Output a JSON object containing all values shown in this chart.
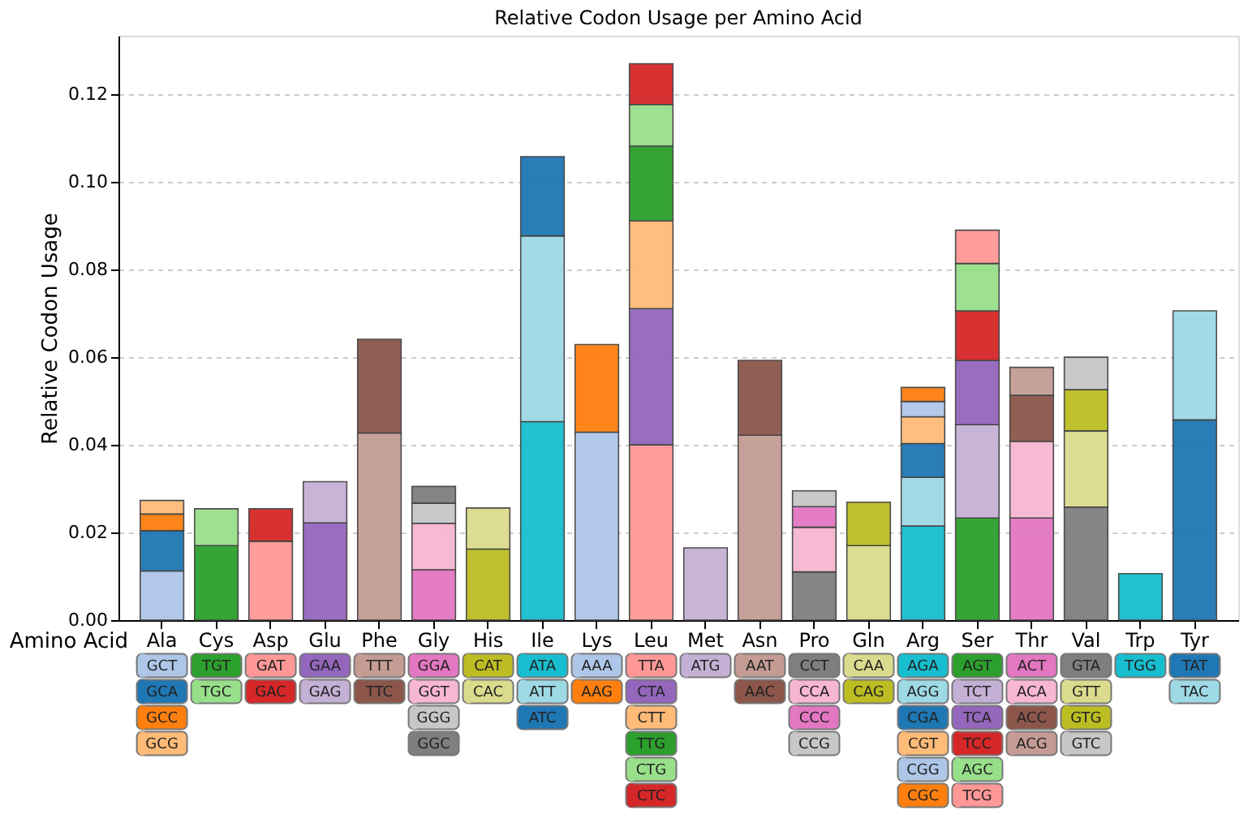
{
  "chart_data": {
    "type": "bar",
    "title": "Relative Codon Usage per Amino Acid",
    "xlabel": "Amino Acid",
    "ylabel": "Relative Codon Usage",
    "stacked": true,
    "grid": "y",
    "legend": "bottom",
    "ylim": [
      0,
      0.1334
    ],
    "yticks": [
      {
        "value": 0,
        "label": "0.00"
      },
      0.02,
      0.04,
      0.06,
      0.08,
      {
        "value": 0.1,
        "label": "0.10"
      },
      0.12
    ],
    "categories": [
      "Ala",
      "Cys",
      "Asp",
      "Glu",
      "Phe",
      "Gly",
      "His",
      "Ile",
      "Lys",
      "Leu",
      "Met",
      "Asn",
      "Pro",
      "Gln",
      "Arg",
      "Ser",
      "Thr",
      "Val",
      "Trp",
      "Tyr"
    ],
    "series": [
      {
        "name": "GCT",
        "color": "#aec7e8",
        "values": [
          0.0112,
          null,
          null,
          null,
          null,
          null,
          null,
          null,
          null,
          null,
          null,
          null,
          null,
          null,
          null,
          null,
          null,
          null,
          null,
          null
        ]
      },
      {
        "name": "GCA",
        "color": "#1f77b4",
        "values": [
          0.0092,
          null,
          null,
          null,
          null,
          null,
          null,
          null,
          null,
          null,
          null,
          null,
          null,
          null,
          null,
          null,
          null,
          null,
          null,
          null
        ]
      },
      {
        "name": "GCC",
        "color": "#ff7f0e",
        "values": [
          0.0038,
          null,
          null,
          null,
          null,
          null,
          null,
          null,
          null,
          null,
          null,
          null,
          null,
          null,
          null,
          null,
          null,
          null,
          null,
          null
        ]
      },
      {
        "name": "GCG",
        "color": "#ffbb78",
        "values": [
          0.0031,
          null,
          null,
          null,
          null,
          null,
          null,
          null,
          null,
          null,
          null,
          null,
          null,
          null,
          null,
          null,
          null,
          null,
          null,
          null
        ]
      },
      {
        "name": "TGT",
        "color": "#2ca02c",
        "values": [
          null,
          0.017,
          null,
          null,
          null,
          null,
          null,
          null,
          null,
          null,
          null,
          null,
          null,
          null,
          null,
          null,
          null,
          null,
          null,
          null
        ]
      },
      {
        "name": "TGC",
        "color": "#98df8a",
        "values": [
          null,
          0.0084,
          null,
          null,
          null,
          null,
          null,
          null,
          null,
          null,
          null,
          null,
          null,
          null,
          null,
          null,
          null,
          null,
          null,
          null
        ]
      },
      {
        "name": "GAT",
        "color": "#ff9896",
        "values": [
          null,
          null,
          0.018,
          null,
          null,
          null,
          null,
          null,
          null,
          null,
          null,
          null,
          null,
          null,
          null,
          null,
          null,
          null,
          null,
          null
        ]
      },
      {
        "name": "GAC",
        "color": "#d62728",
        "values": [
          null,
          null,
          0.0074,
          null,
          null,
          null,
          null,
          null,
          null,
          null,
          null,
          null,
          null,
          null,
          null,
          null,
          null,
          null,
          null,
          null
        ]
      },
      {
        "name": "GAA",
        "color": "#9467bd",
        "values": [
          null,
          null,
          null,
          0.0222,
          null,
          null,
          null,
          null,
          null,
          null,
          null,
          null,
          null,
          null,
          null,
          null,
          null,
          null,
          null,
          null
        ]
      },
      {
        "name": "GAG",
        "color": "#c5b0d5",
        "values": [
          null,
          null,
          null,
          0.0094,
          null,
          null,
          null,
          null,
          null,
          null,
          null,
          null,
          null,
          null,
          null,
          null,
          null,
          null,
          null,
          null
        ]
      },
      {
        "name": "TTT",
        "color": "#c49c94",
        "values": [
          null,
          null,
          null,
          null,
          0.0427,
          null,
          null,
          null,
          null,
          null,
          null,
          null,
          null,
          null,
          null,
          null,
          null,
          null,
          null,
          null
        ]
      },
      {
        "name": "TTC",
        "color": "#8c564b",
        "values": [
          null,
          null,
          null,
          null,
          0.0214,
          null,
          null,
          null,
          null,
          null,
          null,
          null,
          null,
          null,
          null,
          null,
          null,
          null,
          null,
          null
        ]
      },
      {
        "name": "GGA",
        "color": "#e377c2",
        "values": [
          null,
          null,
          null,
          null,
          null,
          0.0115,
          null,
          null,
          null,
          null,
          null,
          null,
          null,
          null,
          null,
          null,
          null,
          null,
          null,
          null
        ]
      },
      {
        "name": "GGT",
        "color": "#f7b6d2",
        "values": [
          null,
          null,
          null,
          null,
          null,
          0.0106,
          null,
          null,
          null,
          null,
          null,
          null,
          null,
          null,
          null,
          null,
          null,
          null,
          null,
          null
        ]
      },
      {
        "name": "GGG",
        "color": "#c7c7c7",
        "values": [
          null,
          null,
          null,
          null,
          null,
          0.0046,
          null,
          null,
          null,
          null,
          null,
          null,
          null,
          null,
          null,
          null,
          null,
          null,
          null,
          null
        ]
      },
      {
        "name": "GGC",
        "color": "#7f7f7f",
        "values": [
          null,
          null,
          null,
          null,
          null,
          0.0038,
          null,
          null,
          null,
          null,
          null,
          null,
          null,
          null,
          null,
          null,
          null,
          null,
          null,
          null
        ]
      },
      {
        "name": "CAT",
        "color": "#bcbd22",
        "values": [
          null,
          null,
          null,
          null,
          null,
          null,
          0.0162,
          null,
          null,
          null,
          null,
          null,
          null,
          null,
          null,
          null,
          null,
          null,
          null,
          null
        ]
      },
      {
        "name": "CAC",
        "color": "#dbdb8d",
        "values": [
          null,
          null,
          null,
          null,
          null,
          null,
          0.0094,
          null,
          null,
          null,
          null,
          null,
          null,
          null,
          null,
          null,
          null,
          null,
          null,
          null
        ]
      },
      {
        "name": "ATA",
        "color": "#17becf",
        "values": [
          null,
          null,
          null,
          null,
          null,
          null,
          null,
          0.0453,
          null,
          null,
          null,
          null,
          null,
          null,
          null,
          null,
          null,
          null,
          null,
          null
        ]
      },
      {
        "name": "ATT",
        "color": "#9edae5",
        "values": [
          null,
          null,
          null,
          null,
          null,
          null,
          null,
          0.0424,
          null,
          null,
          null,
          null,
          null,
          null,
          null,
          null,
          null,
          null,
          null,
          null
        ]
      },
      {
        "name": "ATC",
        "color": "#1f77b4",
        "values": [
          null,
          null,
          null,
          null,
          null,
          null,
          null,
          0.0181,
          null,
          null,
          null,
          null,
          null,
          null,
          null,
          null,
          null,
          null,
          null,
          null
        ]
      },
      {
        "name": "AAA",
        "color": "#aec7e8",
        "values": [
          null,
          null,
          null,
          null,
          null,
          null,
          null,
          null,
          0.0429,
          null,
          null,
          null,
          null,
          null,
          null,
          null,
          null,
          null,
          null,
          null
        ]
      },
      {
        "name": "AAG",
        "color": "#ff7f0e",
        "values": [
          null,
          null,
          null,
          null,
          null,
          null,
          null,
          null,
          0.02,
          null,
          null,
          null,
          null,
          null,
          null,
          null,
          null,
          null,
          null,
          null
        ]
      },
      {
        "name": "TTA",
        "color": "#ff9896",
        "values": [
          null,
          null,
          null,
          null,
          null,
          null,
          null,
          null,
          null,
          0.04,
          null,
          null,
          null,
          null,
          null,
          null,
          null,
          null,
          null,
          null
        ]
      },
      {
        "name": "CTA",
        "color": "#9467bd",
        "values": [
          null,
          null,
          null,
          null,
          null,
          null,
          null,
          null,
          null,
          0.0311,
          null,
          null,
          null,
          null,
          null,
          null,
          null,
          null,
          null,
          null
        ]
      },
      {
        "name": "CTT",
        "color": "#ffbb78",
        "values": [
          null,
          null,
          null,
          null,
          null,
          null,
          null,
          null,
          null,
          0.02,
          null,
          null,
          null,
          null,
          null,
          null,
          null,
          null,
          null,
          null
        ]
      },
      {
        "name": "TTG",
        "color": "#2ca02c",
        "values": [
          null,
          null,
          null,
          null,
          null,
          null,
          null,
          null,
          null,
          0.0171,
          null,
          null,
          null,
          null,
          null,
          null,
          null,
          null,
          null,
          null
        ]
      },
      {
        "name": "CTG",
        "color": "#98df8a",
        "values": [
          null,
          null,
          null,
          null,
          null,
          null,
          null,
          null,
          null,
          0.0095,
          null,
          null,
          null,
          null,
          null,
          null,
          null,
          null,
          null,
          null
        ]
      },
      {
        "name": "CTC",
        "color": "#d62728",
        "values": [
          null,
          null,
          null,
          null,
          null,
          null,
          null,
          null,
          null,
          0.0093,
          null,
          null,
          null,
          null,
          null,
          null,
          null,
          null,
          null,
          null
        ]
      },
      {
        "name": "ATG",
        "color": "#c5b0d5",
        "values": [
          null,
          null,
          null,
          null,
          null,
          null,
          null,
          null,
          null,
          null,
          0.0165,
          null,
          null,
          null,
          null,
          null,
          null,
          null,
          null,
          null
        ]
      },
      {
        "name": "AAT",
        "color": "#c49c94",
        "values": [
          null,
          null,
          null,
          null,
          null,
          null,
          null,
          null,
          null,
          null,
          null,
          0.0422,
          null,
          null,
          null,
          null,
          null,
          null,
          null,
          null
        ]
      },
      {
        "name": "AAC",
        "color": "#8c564b",
        "values": [
          null,
          null,
          null,
          null,
          null,
          null,
          null,
          null,
          null,
          null,
          null,
          0.0171,
          null,
          null,
          null,
          null,
          null,
          null,
          null,
          null
        ]
      },
      {
        "name": "CCT",
        "color": "#7f7f7f",
        "values": [
          null,
          null,
          null,
          null,
          null,
          null,
          null,
          null,
          null,
          null,
          null,
          null,
          0.011,
          null,
          null,
          null,
          null,
          null,
          null,
          null
        ]
      },
      {
        "name": "CCA",
        "color": "#f7b6d2",
        "values": [
          null,
          null,
          null,
          null,
          null,
          null,
          null,
          null,
          null,
          null,
          null,
          null,
          0.0102,
          null,
          null,
          null,
          null,
          null,
          null,
          null
        ]
      },
      {
        "name": "CCC",
        "color": "#e377c2",
        "values": [
          null,
          null,
          null,
          null,
          null,
          null,
          null,
          null,
          null,
          null,
          null,
          null,
          0.0047,
          null,
          null,
          null,
          null,
          null,
          null,
          null
        ]
      },
      {
        "name": "CCG",
        "color": "#c7c7c7",
        "values": [
          null,
          null,
          null,
          null,
          null,
          null,
          null,
          null,
          null,
          null,
          null,
          null,
          0.0036,
          null,
          null,
          null,
          null,
          null,
          null,
          null
        ]
      },
      {
        "name": "CAA",
        "color": "#dbdb8d",
        "values": [
          null,
          null,
          null,
          null,
          null,
          null,
          null,
          null,
          null,
          null,
          null,
          null,
          null,
          0.017,
          null,
          null,
          null,
          null,
          null,
          null
        ]
      },
      {
        "name": "CAG",
        "color": "#bcbd22",
        "values": [
          null,
          null,
          null,
          null,
          null,
          null,
          null,
          null,
          null,
          null,
          null,
          null,
          null,
          0.0099,
          null,
          null,
          null,
          null,
          null,
          null
        ]
      },
      {
        "name": "AGA",
        "color": "#17becf",
        "values": [
          null,
          null,
          null,
          null,
          null,
          null,
          null,
          null,
          null,
          null,
          null,
          null,
          null,
          null,
          0.0215,
          null,
          null,
          null,
          null,
          null
        ]
      },
      {
        "name": "AGG",
        "color": "#9edae5",
        "values": [
          null,
          null,
          null,
          null,
          null,
          null,
          null,
          null,
          null,
          null,
          null,
          null,
          null,
          null,
          0.0111,
          null,
          null,
          null,
          null,
          null
        ]
      },
      {
        "name": "CGA",
        "color": "#1f77b4",
        "values": [
          null,
          null,
          null,
          null,
          null,
          null,
          null,
          null,
          null,
          null,
          null,
          null,
          null,
          null,
          0.0077,
          null,
          null,
          null,
          null,
          null
        ]
      },
      {
        "name": "CGT",
        "color": "#ffbb78",
        "values": [
          null,
          null,
          null,
          null,
          null,
          null,
          null,
          null,
          null,
          null,
          null,
          null,
          null,
          null,
          0.0061,
          null,
          null,
          null,
          null,
          null
        ]
      },
      {
        "name": "CGG",
        "color": "#aec7e8",
        "values": [
          null,
          null,
          null,
          null,
          null,
          null,
          null,
          null,
          null,
          null,
          null,
          null,
          null,
          null,
          0.0035,
          null,
          null,
          null,
          null,
          null
        ]
      },
      {
        "name": "CGC",
        "color": "#ff7f0e",
        "values": [
          null,
          null,
          null,
          null,
          null,
          null,
          null,
          null,
          null,
          null,
          null,
          null,
          null,
          null,
          0.0032,
          null,
          null,
          null,
          null,
          null
        ]
      },
      {
        "name": "AGT",
        "color": "#2ca02c",
        "values": [
          null,
          null,
          null,
          null,
          null,
          null,
          null,
          null,
          null,
          null,
          null,
          null,
          null,
          null,
          null,
          0.0233,
          null,
          null,
          null,
          null
        ]
      },
      {
        "name": "TCT",
        "color": "#c5b0d5",
        "values": [
          null,
          null,
          null,
          null,
          null,
          null,
          null,
          null,
          null,
          null,
          null,
          null,
          null,
          null,
          null,
          0.0213,
          null,
          null,
          null,
          null
        ]
      },
      {
        "name": "TCA",
        "color": "#9467bd",
        "values": [
          null,
          null,
          null,
          null,
          null,
          null,
          null,
          null,
          null,
          null,
          null,
          null,
          null,
          null,
          null,
          0.0147,
          null,
          null,
          null,
          null
        ]
      },
      {
        "name": "TCC",
        "color": "#d62728",
        "values": [
          null,
          null,
          null,
          null,
          null,
          null,
          null,
          null,
          null,
          null,
          null,
          null,
          null,
          null,
          null,
          0.0113,
          null,
          null,
          null,
          null
        ]
      },
      {
        "name": "AGC",
        "color": "#98df8a",
        "values": [
          null,
          null,
          null,
          null,
          null,
          null,
          null,
          null,
          null,
          null,
          null,
          null,
          null,
          null,
          null,
          0.0108,
          null,
          null,
          null,
          null
        ]
      },
      {
        "name": "TCG",
        "color": "#ff9896",
        "values": [
          null,
          null,
          null,
          null,
          null,
          null,
          null,
          null,
          null,
          null,
          null,
          null,
          null,
          null,
          null,
          0.0076,
          null,
          null,
          null,
          null
        ]
      },
      {
        "name": "ACT",
        "color": "#e377c2",
        "values": [
          null,
          null,
          null,
          null,
          null,
          null,
          null,
          null,
          null,
          null,
          null,
          null,
          null,
          null,
          null,
          null,
          0.0233,
          null,
          null,
          null
        ]
      },
      {
        "name": "ACA",
        "color": "#f7b6d2",
        "values": [
          null,
          null,
          null,
          null,
          null,
          null,
          null,
          null,
          null,
          null,
          null,
          null,
          null,
          null,
          null,
          null,
          0.0175,
          null,
          null,
          null
        ]
      },
      {
        "name": "ACC",
        "color": "#8c564b",
        "values": [
          null,
          null,
          null,
          null,
          null,
          null,
          null,
          null,
          null,
          null,
          null,
          null,
          null,
          null,
          null,
          null,
          0.0105,
          null,
          null,
          null
        ]
      },
      {
        "name": "ACG",
        "color": "#c49c94",
        "values": [
          null,
          null,
          null,
          null,
          null,
          null,
          null,
          null,
          null,
          null,
          null,
          null,
          null,
          null,
          null,
          null,
          0.0064,
          null,
          null,
          null
        ]
      },
      {
        "name": "GTA",
        "color": "#7f7f7f",
        "values": [
          null,
          null,
          null,
          null,
          null,
          null,
          null,
          null,
          null,
          null,
          null,
          null,
          null,
          null,
          null,
          null,
          null,
          0.0258,
          null,
          null
        ]
      },
      {
        "name": "GTT",
        "color": "#dbdb8d",
        "values": [
          null,
          null,
          null,
          null,
          null,
          null,
          null,
          null,
          null,
          null,
          null,
          null,
          null,
          null,
          null,
          null,
          null,
          0.0174,
          null,
          null
        ]
      },
      {
        "name": "GTG",
        "color": "#bcbd22",
        "values": [
          null,
          null,
          null,
          null,
          null,
          null,
          null,
          null,
          null,
          null,
          null,
          null,
          null,
          null,
          null,
          null,
          null,
          0.0094,
          null,
          null
        ]
      },
      {
        "name": "GTC",
        "color": "#c7c7c7",
        "values": [
          null,
          null,
          null,
          null,
          null,
          null,
          null,
          null,
          null,
          null,
          null,
          null,
          null,
          null,
          null,
          null,
          null,
          0.0074,
          null,
          null
        ]
      },
      {
        "name": "TGG",
        "color": "#17becf",
        "values": [
          null,
          null,
          null,
          null,
          null,
          null,
          null,
          null,
          null,
          null,
          null,
          null,
          null,
          null,
          null,
          null,
          null,
          null,
          0.0106,
          null
        ]
      },
      {
        "name": "TAT",
        "color": "#1f77b4",
        "values": [
          null,
          null,
          null,
          null,
          null,
          null,
          null,
          null,
          null,
          null,
          null,
          null,
          null,
          null,
          null,
          null,
          null,
          null,
          null,
          0.0457
        ]
      },
      {
        "name": "TAC",
        "color": "#9edae5",
        "values": [
          null,
          null,
          null,
          null,
          null,
          null,
          null,
          null,
          null,
          null,
          null,
          null,
          null,
          null,
          null,
          null,
          null,
          null,
          null,
          0.0249
        ]
      }
    ]
  }
}
